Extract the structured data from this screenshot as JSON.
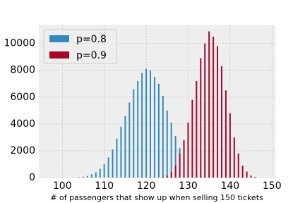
{
  "chart_data": {
    "type": "bar",
    "x_label": "# of passengers that show up when selling 150 tickets",
    "xlim": [
      94.4,
      150.8
    ],
    "xticks": [
      100,
      110,
      120,
      130,
      140,
      150
    ],
    "ylim": [
      0,
      11400
    ],
    "yticks": [
      0,
      2000,
      4000,
      6000,
      8000,
      10000
    ],
    "grid": true,
    "legend": "upper left",
    "series": [
      {
        "name": "p=0.8",
        "color": "#348ABD",
        "x": [
          104,
          105,
          106,
          107,
          108,
          109,
          110,
          111,
          112,
          113,
          114,
          115,
          116,
          117,
          118,
          119,
          120,
          121,
          122,
          123,
          124,
          125,
          126,
          127,
          128,
          129,
          130,
          131,
          132,
          133,
          134,
          135
        ],
        "values": [
          30,
          60,
          130,
          250,
          400,
          650,
          1000,
          1500,
          2100,
          2900,
          3800,
          4600,
          5600,
          6600,
          7200,
          7800,
          8100,
          8000,
          7500,
          7000,
          6100,
          5000,
          4100,
          3100,
          2200,
          1500,
          900,
          500,
          300,
          150,
          60,
          20
        ]
      },
      {
        "name": "p=0.9",
        "color": "#A60628",
        "x": [
          124,
          125,
          126,
          127,
          128,
          129,
          130,
          131,
          132,
          133,
          134,
          135,
          136,
          137,
          138,
          139,
          140,
          141,
          142,
          143,
          144,
          145,
          146
        ],
        "values": [
          50,
          150,
          400,
          900,
          1800,
          2800,
          4100,
          5800,
          7200,
          8900,
          10000,
          10900,
          10500,
          9800,
          8300,
          6500,
          4800,
          3000,
          1800,
          900,
          450,
          150,
          50
        ]
      }
    ]
  }
}
